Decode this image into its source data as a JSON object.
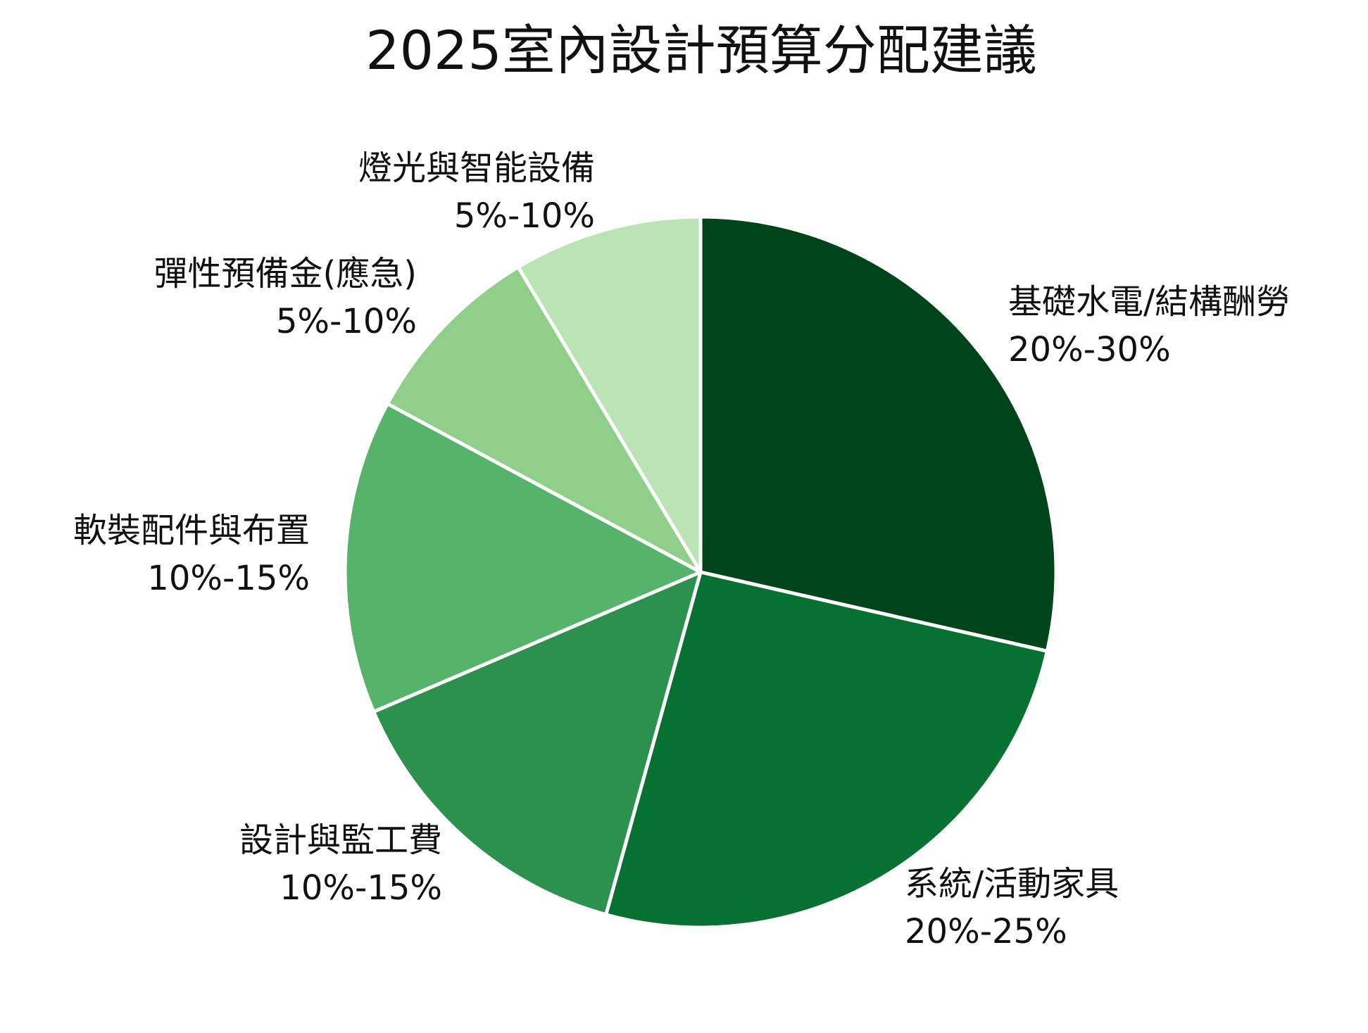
{
  "chart_data": {
    "type": "pie",
    "title": "2025室內設計預算分配建議",
    "slices": [
      {
        "name": "基礎水電/結構酬勞",
        "range": "20%-30%",
        "value": 25,
        "color": "#00441b"
      },
      {
        "name": "系統/活動家具",
        "range": "20%-25%",
        "value": 22.5,
        "color": "#067130"
      },
      {
        "name": "設計與監工費",
        "range": "10%-15%",
        "value": 12.5,
        "color": "#2c914d"
      },
      {
        "name": "軟裝配件與布置",
        "range": "10%-15%",
        "value": 12.5,
        "color": "#55b469"
      },
      {
        "name": "彈性預備金(應急)",
        "range": "5%-10%",
        "value": 7.5,
        "color": "#8fcf89"
      },
      {
        "name": "燈光與智能設備",
        "range": "5%-10%",
        "value": 7.5,
        "color": "#bae4b3"
      }
    ],
    "start_angle": "12 o'clock",
    "direction": "clockwise",
    "legend": "none (labels placed outside slices)"
  }
}
